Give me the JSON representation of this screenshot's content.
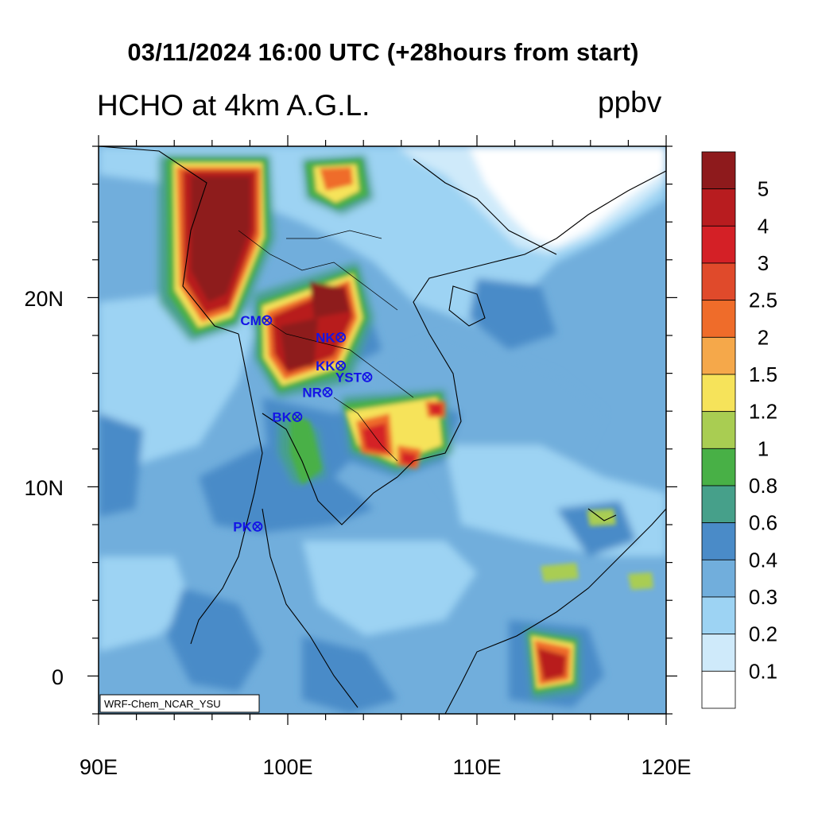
{
  "title": "03/11/2024 16:00 UTC (+28hours from start)",
  "subtitle": "HCHO at 4km A.G.L.",
  "units": "ppbv",
  "credit": "WRF-Chem_NCAR_YSU",
  "axes": {
    "x_ticks": [
      "90E",
      "100E",
      "110E",
      "120E"
    ],
    "y_ticks": [
      "20N",
      "10N",
      "0"
    ],
    "lon_range": [
      90,
      120
    ],
    "lat_range": [
      -2,
      28
    ]
  },
  "colorbar": {
    "labels": [
      "5",
      "4",
      "3",
      "2.5",
      "2",
      "1.5",
      "1.2",
      "1",
      "0.8",
      "0.6",
      "0.4",
      "0.3",
      "0.2",
      "0.1"
    ],
    "colors": [
      "#8e1a1c",
      "#b81c1f",
      "#d42026",
      "#e04a2b",
      "#ef6c2a",
      "#f5a84a",
      "#f6e35a",
      "#a9cd52",
      "#48b046",
      "#46a08a",
      "#4a8bc8",
      "#71aedc",
      "#9dd3f3",
      "#cfeafa",
      "#ffffff"
    ]
  },
  "stations": [
    {
      "code": "CM",
      "lon": 98.9,
      "lat": 18.8
    },
    {
      "code": "NK",
      "lon": 102.8,
      "lat": 17.9
    },
    {
      "code": "KK",
      "lon": 102.8,
      "lat": 16.4
    },
    {
      "code": "YST",
      "lon": 104.2,
      "lat": 15.8
    },
    {
      "code": "NR",
      "lon": 102.1,
      "lat": 15.0
    },
    {
      "code": "BK",
      "lon": 100.5,
      "lat": 13.7
    },
    {
      "code": "PK",
      "lon": 98.4,
      "lat": 7.9
    }
  ]
}
